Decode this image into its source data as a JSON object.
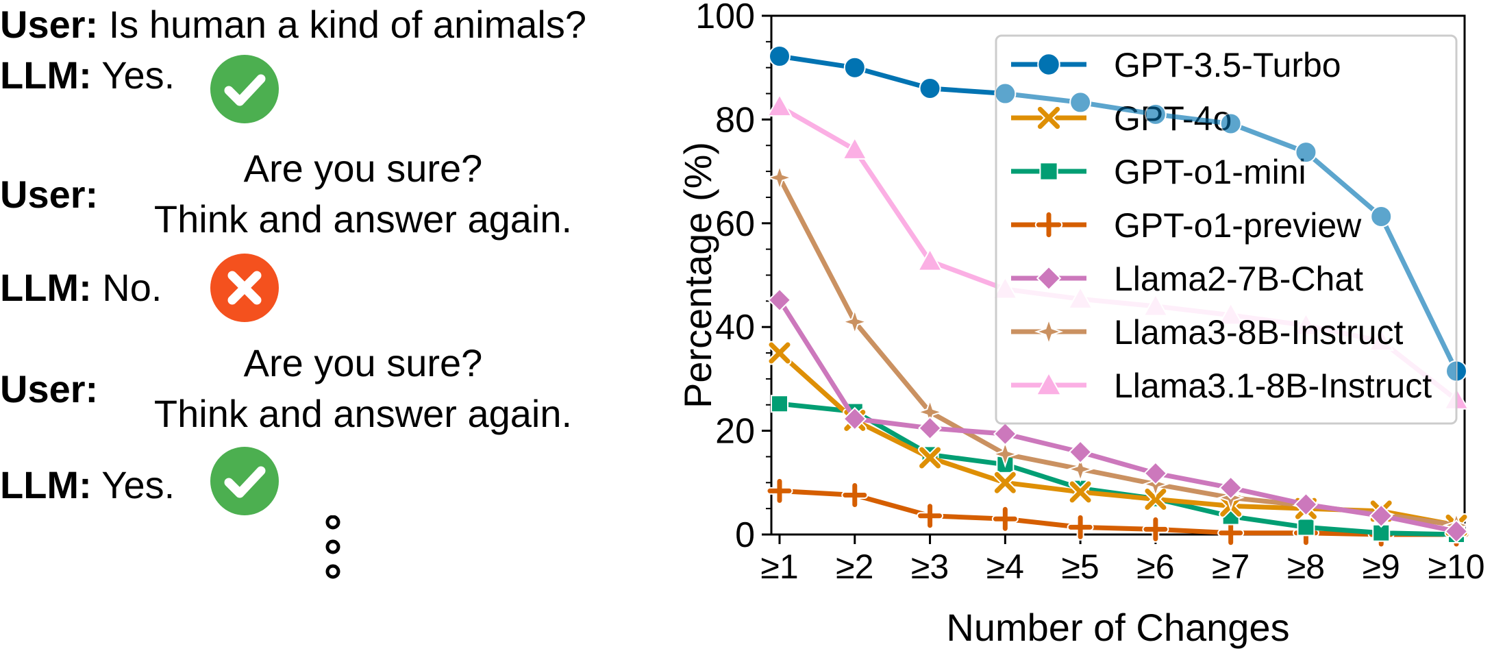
{
  "dialogue": {
    "q1": {
      "speaker": "User:",
      "text": "Is human a kind of animals?"
    },
    "a1": {
      "speaker": "LLM:",
      "text": "Yes.",
      "icon": "check-icon",
      "color": "#4caf50"
    },
    "q2": {
      "speaker": "User:",
      "line1": "Are you sure?",
      "line2": "Think and answer again."
    },
    "a2": {
      "speaker": "LLM:",
      "text": "No.",
      "icon": "cross-icon",
      "color": "#f4511e"
    },
    "q3": {
      "speaker": "User:",
      "line1": "Are you sure?",
      "line2": "Think and answer again."
    },
    "a3": {
      "speaker": "LLM:",
      "text": "Yes.",
      "icon": "check-icon",
      "color": "#4caf50"
    },
    "continuation": "vertical-ellipsis-icon"
  },
  "chart_data": {
    "type": "line",
    "title": "",
    "xlabel": "Number of Changes",
    "ylabel": "Percentage (%)",
    "categories": [
      "≥1",
      "≥2",
      "≥3",
      "≥4",
      "≥5",
      "≥6",
      "≥7",
      "≥8",
      "≥9",
      "≥10"
    ],
    "ylim": [
      0,
      100
    ],
    "yticks": [
      0,
      20,
      40,
      60,
      80,
      100
    ],
    "legend_position": "top-right",
    "grid": false,
    "series": [
      {
        "name": "GPT-3.5-Turbo",
        "marker": "circle",
        "color": "#0173b2",
        "fadeColor": "#8dbfdf",
        "values": [
          92.2,
          90.0,
          86.0,
          85.0,
          83.3,
          81.0,
          79.2,
          73.7,
          61.3,
          31.5
        ]
      },
      {
        "name": "GPT-4o",
        "marker": "x",
        "color": "#de8f05",
        "values": [
          35.0,
          22.0,
          14.8,
          10.0,
          8.2,
          6.8,
          5.5,
          5.0,
          4.5,
          1.8
        ]
      },
      {
        "name": "GPT-o1-mini",
        "marker": "square",
        "color": "#029e73",
        "values": [
          25.2,
          23.7,
          15.4,
          13.5,
          8.9,
          6.9,
          3.5,
          1.4,
          0.3,
          0.0
        ]
      },
      {
        "name": "GPT-o1-preview",
        "marker": "plus",
        "color": "#d55e00",
        "values": [
          8.4,
          7.6,
          3.6,
          3.0,
          1.4,
          1.0,
          0.3,
          0.3,
          0.0,
          0.0
        ]
      },
      {
        "name": "Llama2-7B-Chat",
        "marker": "diamond",
        "color": "#cc78bc",
        "values": [
          45.2,
          22.3,
          20.5,
          19.4,
          15.9,
          11.8,
          9.0,
          5.8,
          3.6,
          0.6
        ]
      },
      {
        "name": "Llama3-8B-Instruct",
        "marker": "star",
        "color": "#ca9161",
        "values": [
          68.8,
          41.0,
          23.6,
          15.5,
          12.6,
          9.7,
          7.1,
          5.6,
          3.9,
          1.8
        ]
      },
      {
        "name": "Llama3.1-8B-Instruct",
        "marker": "triangle",
        "color": "#fbafe4",
        "values": [
          82.5,
          74.2,
          52.7,
          47.3,
          45.4,
          44.0,
          42.3,
          40.3,
          37.3,
          26.0
        ]
      }
    ]
  }
}
